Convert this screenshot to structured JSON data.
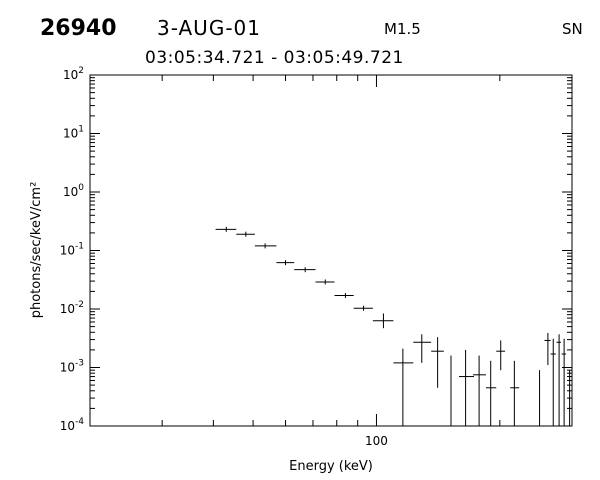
{
  "header": {
    "event_id": "26940",
    "date": "3-AUG-01",
    "flare_class": "M1.5",
    "detector": "SN",
    "time_range": "03:05:34.721 - 03:05:49.721"
  },
  "chart_data": {
    "type": "scatter",
    "title": "",
    "xlabel": "Energy (keV)",
    "ylabel": "photons/sec/keV/cm²",
    "x_scale": "log",
    "y_scale": "log",
    "xlim": [
      20,
      300
    ],
    "ylim": [
      0.0001,
      100
    ],
    "x_tick_labels": [
      "100"
    ],
    "y_tick_labels": [
      {
        "base": "10",
        "exp": "-4"
      },
      {
        "base": "10",
        "exp": "-3"
      },
      {
        "base": "10",
        "exp": "-2"
      },
      {
        "base": "10",
        "exp": "-1"
      },
      {
        "base": "10",
        "exp": "0"
      },
      {
        "base": "10",
        "exp": "1"
      },
      {
        "base": "10",
        "exp": "2"
      }
    ],
    "error_style": "crosshair",
    "points": [
      {
        "x": 43,
        "x_lo": 40.5,
        "x_hi": 45.5,
        "y": 0.23
      },
      {
        "x": 48,
        "x_lo": 45.5,
        "x_hi": 50.5,
        "y": 0.19
      },
      {
        "x": 53.5,
        "x_lo": 50.5,
        "x_hi": 57,
        "y": 0.12
      },
      {
        "x": 60,
        "x_lo": 57,
        "x_hi": 63,
        "y": 0.062
      },
      {
        "x": 67,
        "x_lo": 63,
        "x_hi": 71,
        "y": 0.047
      },
      {
        "x": 75,
        "x_lo": 71,
        "x_hi": 79,
        "y": 0.029
      },
      {
        "x": 84,
        "x_lo": 79,
        "x_hi": 88,
        "y": 0.017
      },
      {
        "x": 93,
        "x_lo": 88,
        "x_hi": 98,
        "y": 0.0103
      },
      {
        "x": 104,
        "x_lo": 98,
        "x_hi": 110,
        "y": 0.0063,
        "y_lo": 0.0047,
        "y_hi": 0.0084
      },
      {
        "x": 116,
        "x_lo": 110,
        "x_hi": 123,
        "y": 0.0012,
        "y_lo": 0.0001,
        "y_hi": 0.0021
      },
      {
        "x": 129,
        "x_lo": 123,
        "x_hi": 136,
        "y": 0.0027,
        "y_lo": 0.0012,
        "y_hi": 0.0037
      },
      {
        "x": 141,
        "x_lo": 136,
        "x_hi": 146,
        "y": 0.0019,
        "y_lo": 0.00045,
        "y_hi": 0.0033
      },
      {
        "x": 152,
        "y": 0.0007,
        "y_lo": 0.0001,
        "y_hi": 0.0016
      },
      {
        "x": 165,
        "x_lo": 159,
        "x_hi": 173,
        "y": 0.0007,
        "y_lo": 0.0001,
        "y_hi": 0.002
      },
      {
        "x": 178,
        "x_lo": 172,
        "x_hi": 185,
        "y": 0.00075,
        "y_lo": 0.0001,
        "y_hi": 0.0016
      },
      {
        "x": 190,
        "x_lo": 185,
        "x_hi": 196,
        "y": 0.00045,
        "y_lo": 0.0001,
        "y_hi": 0.0013
      },
      {
        "x": 201,
        "x_lo": 196,
        "x_hi": 206,
        "y": 0.0019,
        "y_lo": 0.0009,
        "y_hi": 0.0029
      },
      {
        "x": 217,
        "x_lo": 212,
        "x_hi": 223,
        "y": 0.00045,
        "y_lo": 0.0001,
        "y_hi": 0.0013
      },
      {
        "x": 250,
        "y": 0.0003,
        "y_lo": 0.0001,
        "y_hi": 0.0009
      },
      {
        "x": 262,
        "x_lo": 257,
        "x_hi": 266,
        "y": 0.0029,
        "y_lo": 0.0011,
        "y_hi": 0.0039
      },
      {
        "x": 270,
        "x_lo": 266,
        "x_hi": 274,
        "y": 0.0017,
        "y_lo": 0.0001,
        "y_hi": 0.0031
      },
      {
        "x": 279,
        "x_lo": 275,
        "x_hi": 282,
        "y": 0.0027,
        "y_lo": 0.0001,
        "y_hi": 0.0037
      },
      {
        "x": 287,
        "x_lo": 283,
        "x_hi": 290,
        "y": 0.0017,
        "y_lo": 0.0001,
        "y_hi": 0.0031
      },
      {
        "x": 296,
        "y": 0.0004,
        "y_lo": 0.0001,
        "y_hi": 0.0009
      }
    ],
    "grid": false,
    "legend": "none"
  }
}
